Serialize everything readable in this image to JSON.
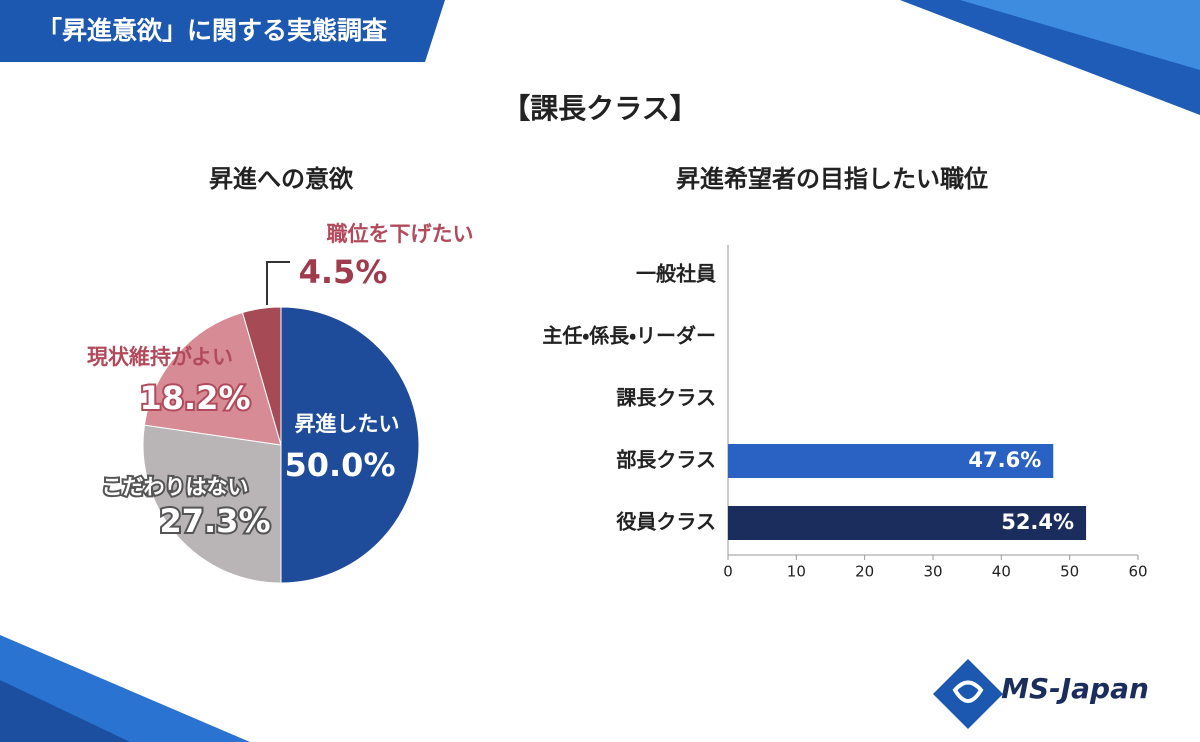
{
  "header": {
    "title": "「昇進意欲」に関する実態調査",
    "subtitle": "【課長クラス】",
    "logo": "MS-Japan"
  },
  "chart_data": [
    {
      "type": "pie",
      "title": "昇進への意欲",
      "categories": [
        "昇進したい",
        "こだわりはない",
        "現状維持がよい",
        "職位を下げたい"
      ],
      "values": [
        50.0,
        27.3,
        18.2,
        4.5
      ],
      "value_labels": [
        "50.0%",
        "27.3%",
        "18.2%",
        "4.5%"
      ],
      "colors": [
        "#1f4c9a",
        "#b9b4b5",
        "#d78c95",
        "#a64b55"
      ]
    },
    {
      "type": "hbar",
      "title": "昇進希望者の目指したい職位",
      "categories": [
        "一般社員",
        "主任・係長・リーダー",
        "課長クラス",
        "部長クラス",
        "役員クラス"
      ],
      "values": [
        0,
        0,
        0,
        47.6,
        52.4
      ],
      "value_labels": [
        null,
        null,
        null,
        "47.6%",
        "52.4%"
      ],
      "colors": [
        "#2a62c4",
        "#2a62c4",
        "#2a62c4",
        "#2a62c4",
        "#1b2d5c"
      ],
      "xlim": [
        0,
        60
      ],
      "xticks": [
        0,
        10,
        20,
        30,
        40,
        50,
        60
      ]
    }
  ]
}
